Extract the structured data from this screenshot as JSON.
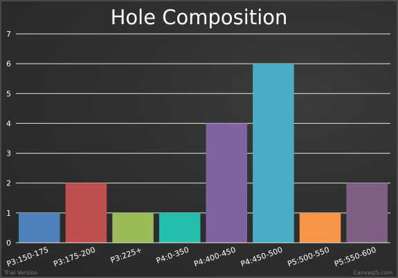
{
  "chart_data": {
    "type": "bar",
    "title": "Hole Composition",
    "categories": [
      "P3:150-175",
      "P3:175-200",
      "P3:225+",
      "P4:0-350",
      "P4:400-450",
      "P4:450-500",
      "P5:500-550",
      "P5:550-600"
    ],
    "values": [
      1,
      2,
      1,
      1,
      4,
      6,
      1,
      2
    ],
    "colors": [
      "#4f81bc",
      "#c0504e",
      "#9bbb58",
      "#23bfaa",
      "#8064a1",
      "#4aacc5",
      "#f79647",
      "#7f6084"
    ],
    "ylim": [
      0,
      7
    ],
    "yticks": [
      0,
      1,
      2,
      3,
      4,
      5,
      6,
      7
    ],
    "grid": true,
    "legend": "none"
  },
  "watermark": {
    "left": "Trial Version",
    "right": "CanvasJS.com"
  }
}
